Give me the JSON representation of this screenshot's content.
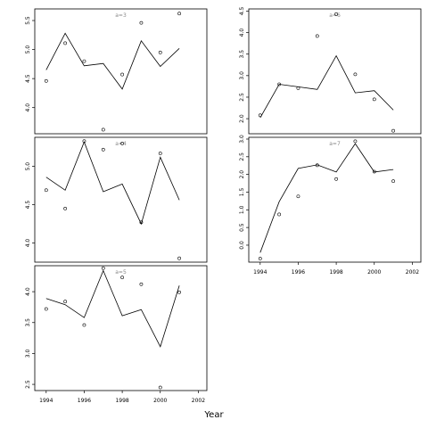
{
  "chart_data": {
    "type": "scatter",
    "xlabel": "Year",
    "panels": [
      {
        "title": "a=3",
        "x": [
          1994,
          1995,
          1996,
          1997,
          1998,
          1999,
          2000,
          2001
        ],
        "observed": [
          4.46,
          5.11,
          4.8,
          3.62,
          4.57,
          5.46,
          4.95,
          5.62
        ],
        "fitted": [
          4.65,
          5.28,
          4.72,
          4.76,
          4.32,
          5.15,
          4.71,
          5.02
        ],
        "ylim": [
          3.55,
          5.7
        ],
        "yticks": [
          "4.0",
          "4.5",
          "5.0",
          "5.5"
        ],
        "xticks": []
      },
      {
        "title": "a=6",
        "x": [
          1994,
          1995,
          1996,
          1997,
          1998,
          1999,
          2000,
          2001
        ],
        "observed": [
          2.08,
          2.8,
          2.71,
          3.92,
          4.43,
          3.03,
          2.45,
          1.72
        ],
        "fitted": [
          2.02,
          2.8,
          2.74,
          2.68,
          3.46,
          2.6,
          2.65,
          2.2
        ],
        "ylim": [
          1.65,
          4.55
        ],
        "yticks": [
          "2.0",
          "2.5",
          "3.0",
          "3.5",
          "4.0",
          "4.5"
        ],
        "xticks": []
      },
      {
        "title": "a=4",
        "x": [
          1994,
          1995,
          1996,
          1997,
          1998,
          1999,
          2000,
          2001
        ],
        "observed": [
          4.69,
          4.45,
          5.33,
          5.22,
          5.3,
          4.27,
          5.17,
          3.8
        ],
        "fitted": [
          4.86,
          4.69,
          5.32,
          4.67,
          4.77,
          4.25,
          5.12,
          4.56
        ],
        "ylim": [
          3.75,
          5.38
        ],
        "yticks": [
          "4.0",
          "4.5",
          "5.0"
        ],
        "xticks": []
      },
      {
        "title": "a=7",
        "x": [
          1994,
          1995,
          1996,
          1997,
          1998,
          1999,
          2000,
          2001
        ],
        "observed": [
          -0.38,
          0.87,
          1.38,
          2.26,
          1.87,
          2.94,
          2.08,
          1.81
        ],
        "fitted": [
          -0.21,
          1.23,
          2.17,
          2.27,
          2.07,
          2.87,
          2.07,
          2.14
        ],
        "ylim": [
          -0.48,
          3.05
        ],
        "yticks": [
          "0.0",
          "0.5",
          "1.0",
          "1.5",
          "2.0",
          "2.5",
          "3.0"
        ],
        "xticks": [
          "1994",
          "1996",
          "1998",
          "2000",
          "2002"
        ]
      },
      {
        "title": "a=5",
        "x": [
          1994,
          1995,
          1996,
          1997,
          1998,
          1999,
          2000,
          2001
        ],
        "observed": [
          3.72,
          3.84,
          3.46,
          4.38,
          4.23,
          4.12,
          2.45,
          3.99
        ],
        "fitted": [
          3.89,
          3.79,
          3.58,
          4.34,
          3.61,
          3.71,
          3.11,
          4.1
        ],
        "ylim": [
          2.4,
          4.42
        ],
        "yticks": [
          "2.5",
          "3.0",
          "3.5",
          "4.0"
        ],
        "xticks": [
          "1994",
          "1996",
          "1998",
          "2000",
          "2002"
        ]
      }
    ]
  }
}
